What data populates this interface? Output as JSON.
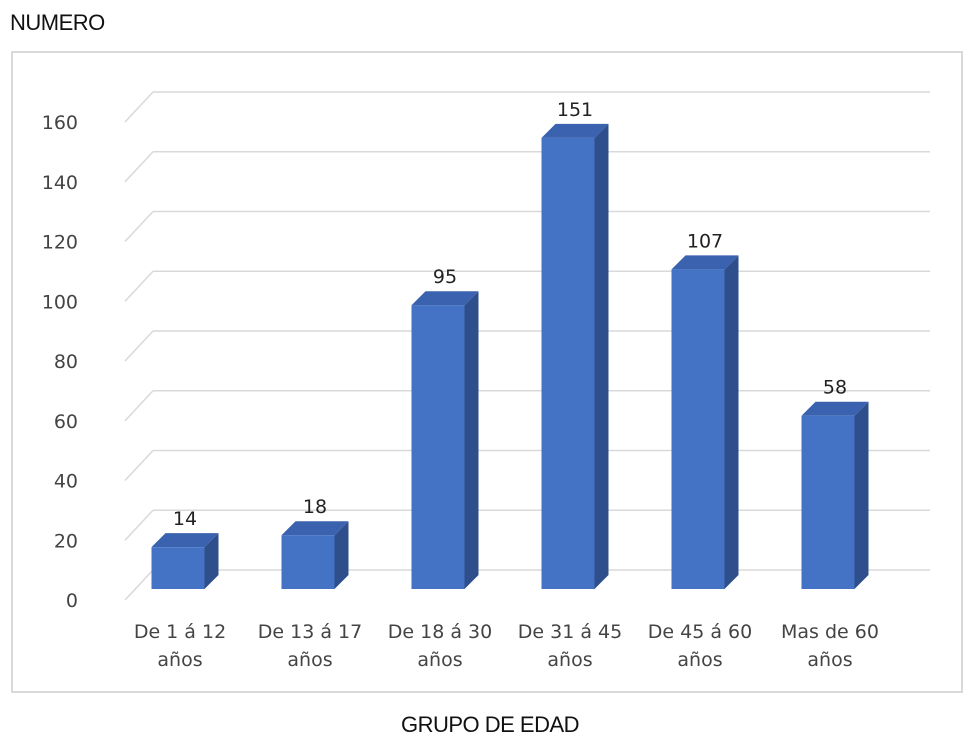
{
  "chart_data": {
    "type": "bar",
    "style": "3d-column",
    "ylabel": "NUMERO",
    "xlabel": "GRUPO DE EDAD",
    "categories": [
      [
        "De  1 á 12",
        "años"
      ],
      [
        "De 13 á 17",
        "años"
      ],
      [
        "De 18 á 30",
        "años"
      ],
      [
        "De 31 á 45",
        "años"
      ],
      [
        "De 45 á 60",
        "años"
      ],
      [
        "Mas de 60",
        "años"
      ]
    ],
    "values": [
      14,
      18,
      95,
      151,
      107,
      58
    ],
    "data_labels": [
      "14",
      "18",
      "95",
      "151",
      "107",
      "58"
    ],
    "ylim": [
      0,
      160
    ],
    "yticks": [
      0,
      20,
      40,
      60,
      80,
      100,
      120,
      140,
      160
    ],
    "grid": true,
    "legend": "none",
    "colors": {
      "bar_front": "#4472C4",
      "bar_side": "#2F4F8C",
      "bar_top": "#3A62AE",
      "grid": "#D9D9D9",
      "border": "#D9D9D9"
    }
  }
}
